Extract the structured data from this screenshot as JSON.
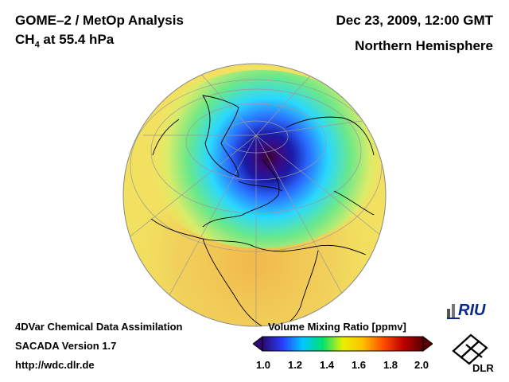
{
  "header": {
    "title_prefix": "GOME–2 / MetOp Analysis",
    "species_main": "CH",
    "species_sub": "4",
    "species_level": " at 55.4 hPa",
    "datetime": "Dec 23, 2009, 12:00 GMT",
    "hemisphere": "Northern Hemisphere"
  },
  "footer": {
    "line1": "4DVar Chemical Data Assimilation",
    "line2": "SACADA Version 1.7",
    "line3": "http://wdc.dlr.de"
  },
  "legend": {
    "title": "Volume Mixing Ratio [ppmv]",
    "ticks": [
      "1.0",
      "1.2",
      "1.4",
      "1.6",
      "1.8",
      "2.0"
    ],
    "min": 1.0,
    "max": 2.0,
    "colors": [
      "#2a0a6e",
      "#2a3cff",
      "#00c8ff",
      "#00e070",
      "#e8f000",
      "#ffc000",
      "#ff5000",
      "#c00000",
      "#5a0000"
    ]
  },
  "logos": {
    "riu": "RIU",
    "dlr": "DLR"
  },
  "map": {
    "projection": "orthographic",
    "field_min_ppmv": 1.05,
    "background_ppmv": 1.66,
    "colors": {
      "core": "#3a0030",
      "deep_blue": "#1a1aa8",
      "blue": "#2a6aff",
      "cyan": "#2ad8ff",
      "green": "#6ae88a",
      "yellow": "#f2e860",
      "orange": "#f0c050",
      "coast": "#000000",
      "grid": "#9a9a9a"
    }
  }
}
